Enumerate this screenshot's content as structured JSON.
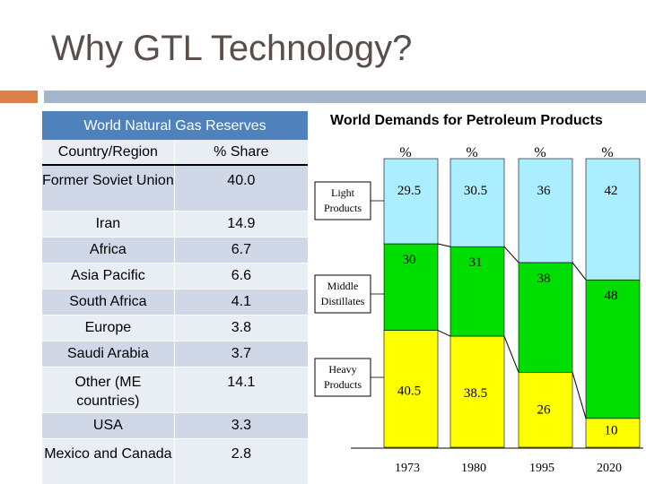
{
  "slide": {
    "title": "Why GTL Technology?"
  },
  "table": {
    "header": "World Natural Gas Reserves",
    "columns": [
      "Country/Region",
      "% Share"
    ],
    "rows": [
      {
        "region": "Former Soviet Union",
        "share": "40.0"
      },
      {
        "region": "Iran",
        "share": "14.9"
      },
      {
        "region": "Africa",
        "share": "6.7"
      },
      {
        "region": "Asia Pacific",
        "share": "6.6"
      },
      {
        "region": "South Africa",
        "share": "4.1"
      },
      {
        "region": "Europe",
        "share": "3.8"
      },
      {
        "region": "Saudi Arabia",
        "share": "3.7"
      },
      {
        "region": "Other (ME countries)",
        "share": "14.1"
      },
      {
        "region": "USA",
        "share": "3.3"
      },
      {
        "region": "Mexico and Canada",
        "share": "2.8"
      }
    ]
  },
  "chart_data": {
    "type": "bar",
    "title": "World Demands for Petroleum Products",
    "stacked": true,
    "percent_label": "%",
    "categories": [
      "1973",
      "1980",
      "1995",
      "2020"
    ],
    "series": [
      {
        "name": "Heavy Products",
        "values": [
          40.5,
          38.5,
          26,
          10
        ],
        "color": "#ffff00"
      },
      {
        "name": "Middle Distillates",
        "values": [
          30,
          31,
          38,
          48
        ],
        "color": "#00dd00"
      },
      {
        "name": "Light Products",
        "values": [
          29.5,
          30.5,
          36,
          42
        ],
        "color": "#aaeeff"
      }
    ],
    "ylim": [
      0,
      100
    ]
  }
}
